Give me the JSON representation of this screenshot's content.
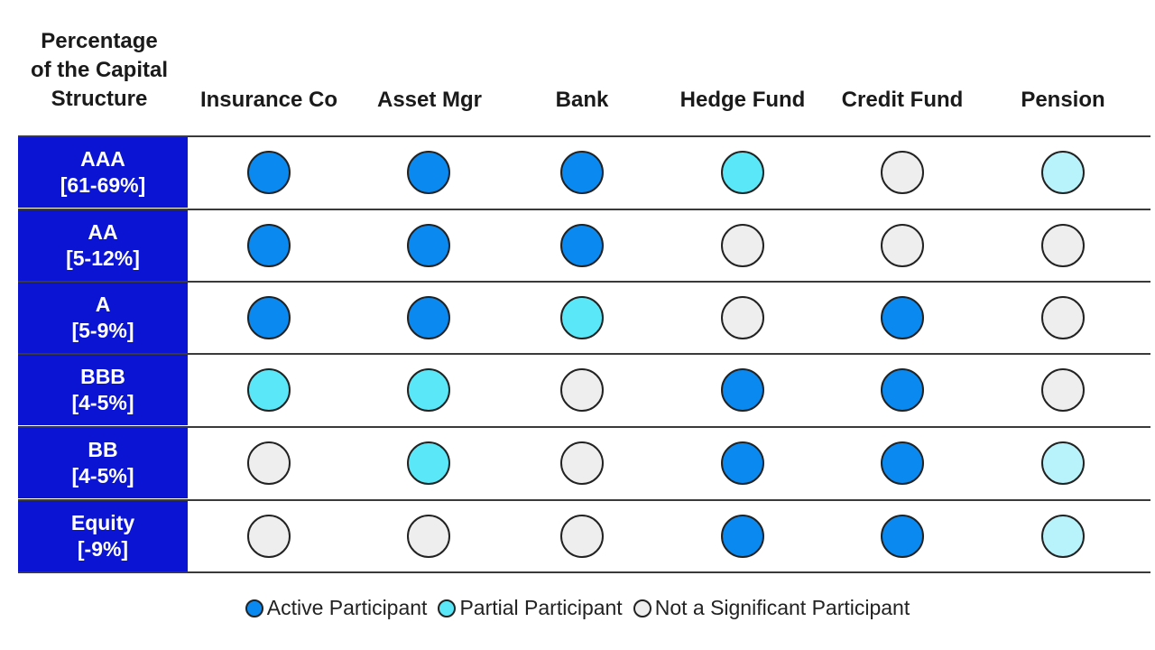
{
  "corner_label": [
    "Percentage",
    "of the Capital",
    "Structure"
  ],
  "columns": [
    "Insurance Co",
    "Asset Mgr",
    "Bank",
    "Hedge Fund",
    "Credit Fund",
    "Pension"
  ],
  "rows": [
    {
      "tranche": "AAA",
      "range": "[61-69%]",
      "levels": [
        "active",
        "active",
        "active",
        "partial",
        "none",
        "pension"
      ]
    },
    {
      "tranche": "AA",
      "range": "[5-12%]",
      "levels": [
        "active",
        "active",
        "active",
        "none",
        "none",
        "none"
      ]
    },
    {
      "tranche": "A",
      "range": "[5-9%]",
      "levels": [
        "active",
        "active",
        "partial",
        "none",
        "active",
        "none"
      ]
    },
    {
      "tranche": "BBB",
      "range": "[4-5%]",
      "levels": [
        "partial",
        "partial",
        "none",
        "active",
        "active",
        "none"
      ]
    },
    {
      "tranche": "BB",
      "range": "[4-5%]",
      "levels": [
        "none",
        "partial",
        "none",
        "active",
        "active",
        "pension"
      ]
    },
    {
      "tranche": "Equity",
      "range": "[-9%]",
      "levels": [
        "none",
        "none",
        "none",
        "active",
        "active",
        "pension"
      ]
    }
  ],
  "legend": [
    {
      "key": "active",
      "label": "Active Participant"
    },
    {
      "key": "partial",
      "label": "Partial Participant"
    },
    {
      "key": "none",
      "label": "Not a Significant Participant"
    }
  ],
  "colors": {
    "row_label_bg": "#0a14d2",
    "active": "#0a8af0",
    "partial": "#5ae8f8",
    "none": "#eeeeee",
    "pension": "#b8f2fb"
  }
}
